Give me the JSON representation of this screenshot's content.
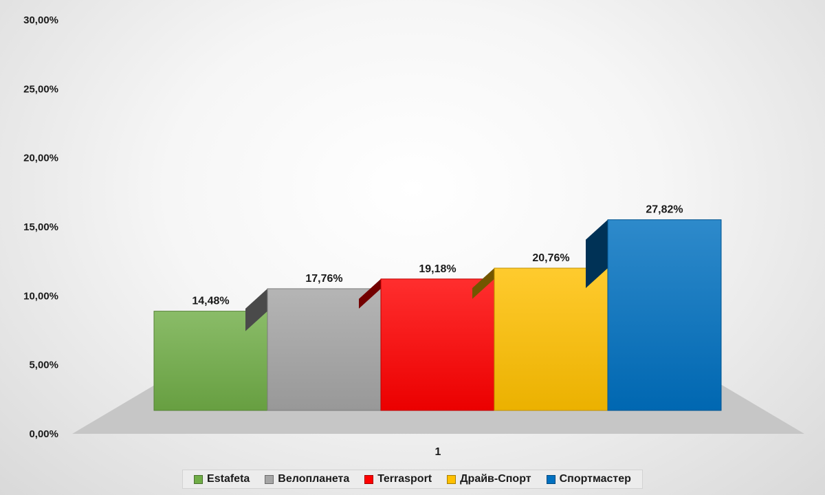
{
  "chart_data": {
    "type": "bar",
    "categories": [
      "1"
    ],
    "series": [
      {
        "name": "Estafeta",
        "values": [
          14.48
        ],
        "label": "14,48%",
        "color": "#70ad47"
      },
      {
        "name": "Велопланета",
        "values": [
          17.76
        ],
        "label": "17,76%",
        "color": "#a5a5a5"
      },
      {
        "name": "Terrasport",
        "values": [
          19.18
        ],
        "label": "19,18%",
        "color": "#ff0000"
      },
      {
        "name": "Драйв-Спорт",
        "values": [
          20.76
        ],
        "label": "20,76%",
        "color": "#ffc000"
      },
      {
        "name": "Спортмастер",
        "values": [
          27.82
        ],
        "label": "27,82%",
        "color": "#0070c0"
      }
    ],
    "yticks": [
      "0,00%",
      "5,00%",
      "10,00%",
      "15,00%",
      "20,00%",
      "25,00%",
      "30,00%"
    ],
    "ylim": [
      0,
      30
    ],
    "y_unit": "percent",
    "title": "",
    "xlabel": "",
    "ylabel": "",
    "grid": false,
    "legend_position": "bottom",
    "style": "3d-clustered-column"
  }
}
